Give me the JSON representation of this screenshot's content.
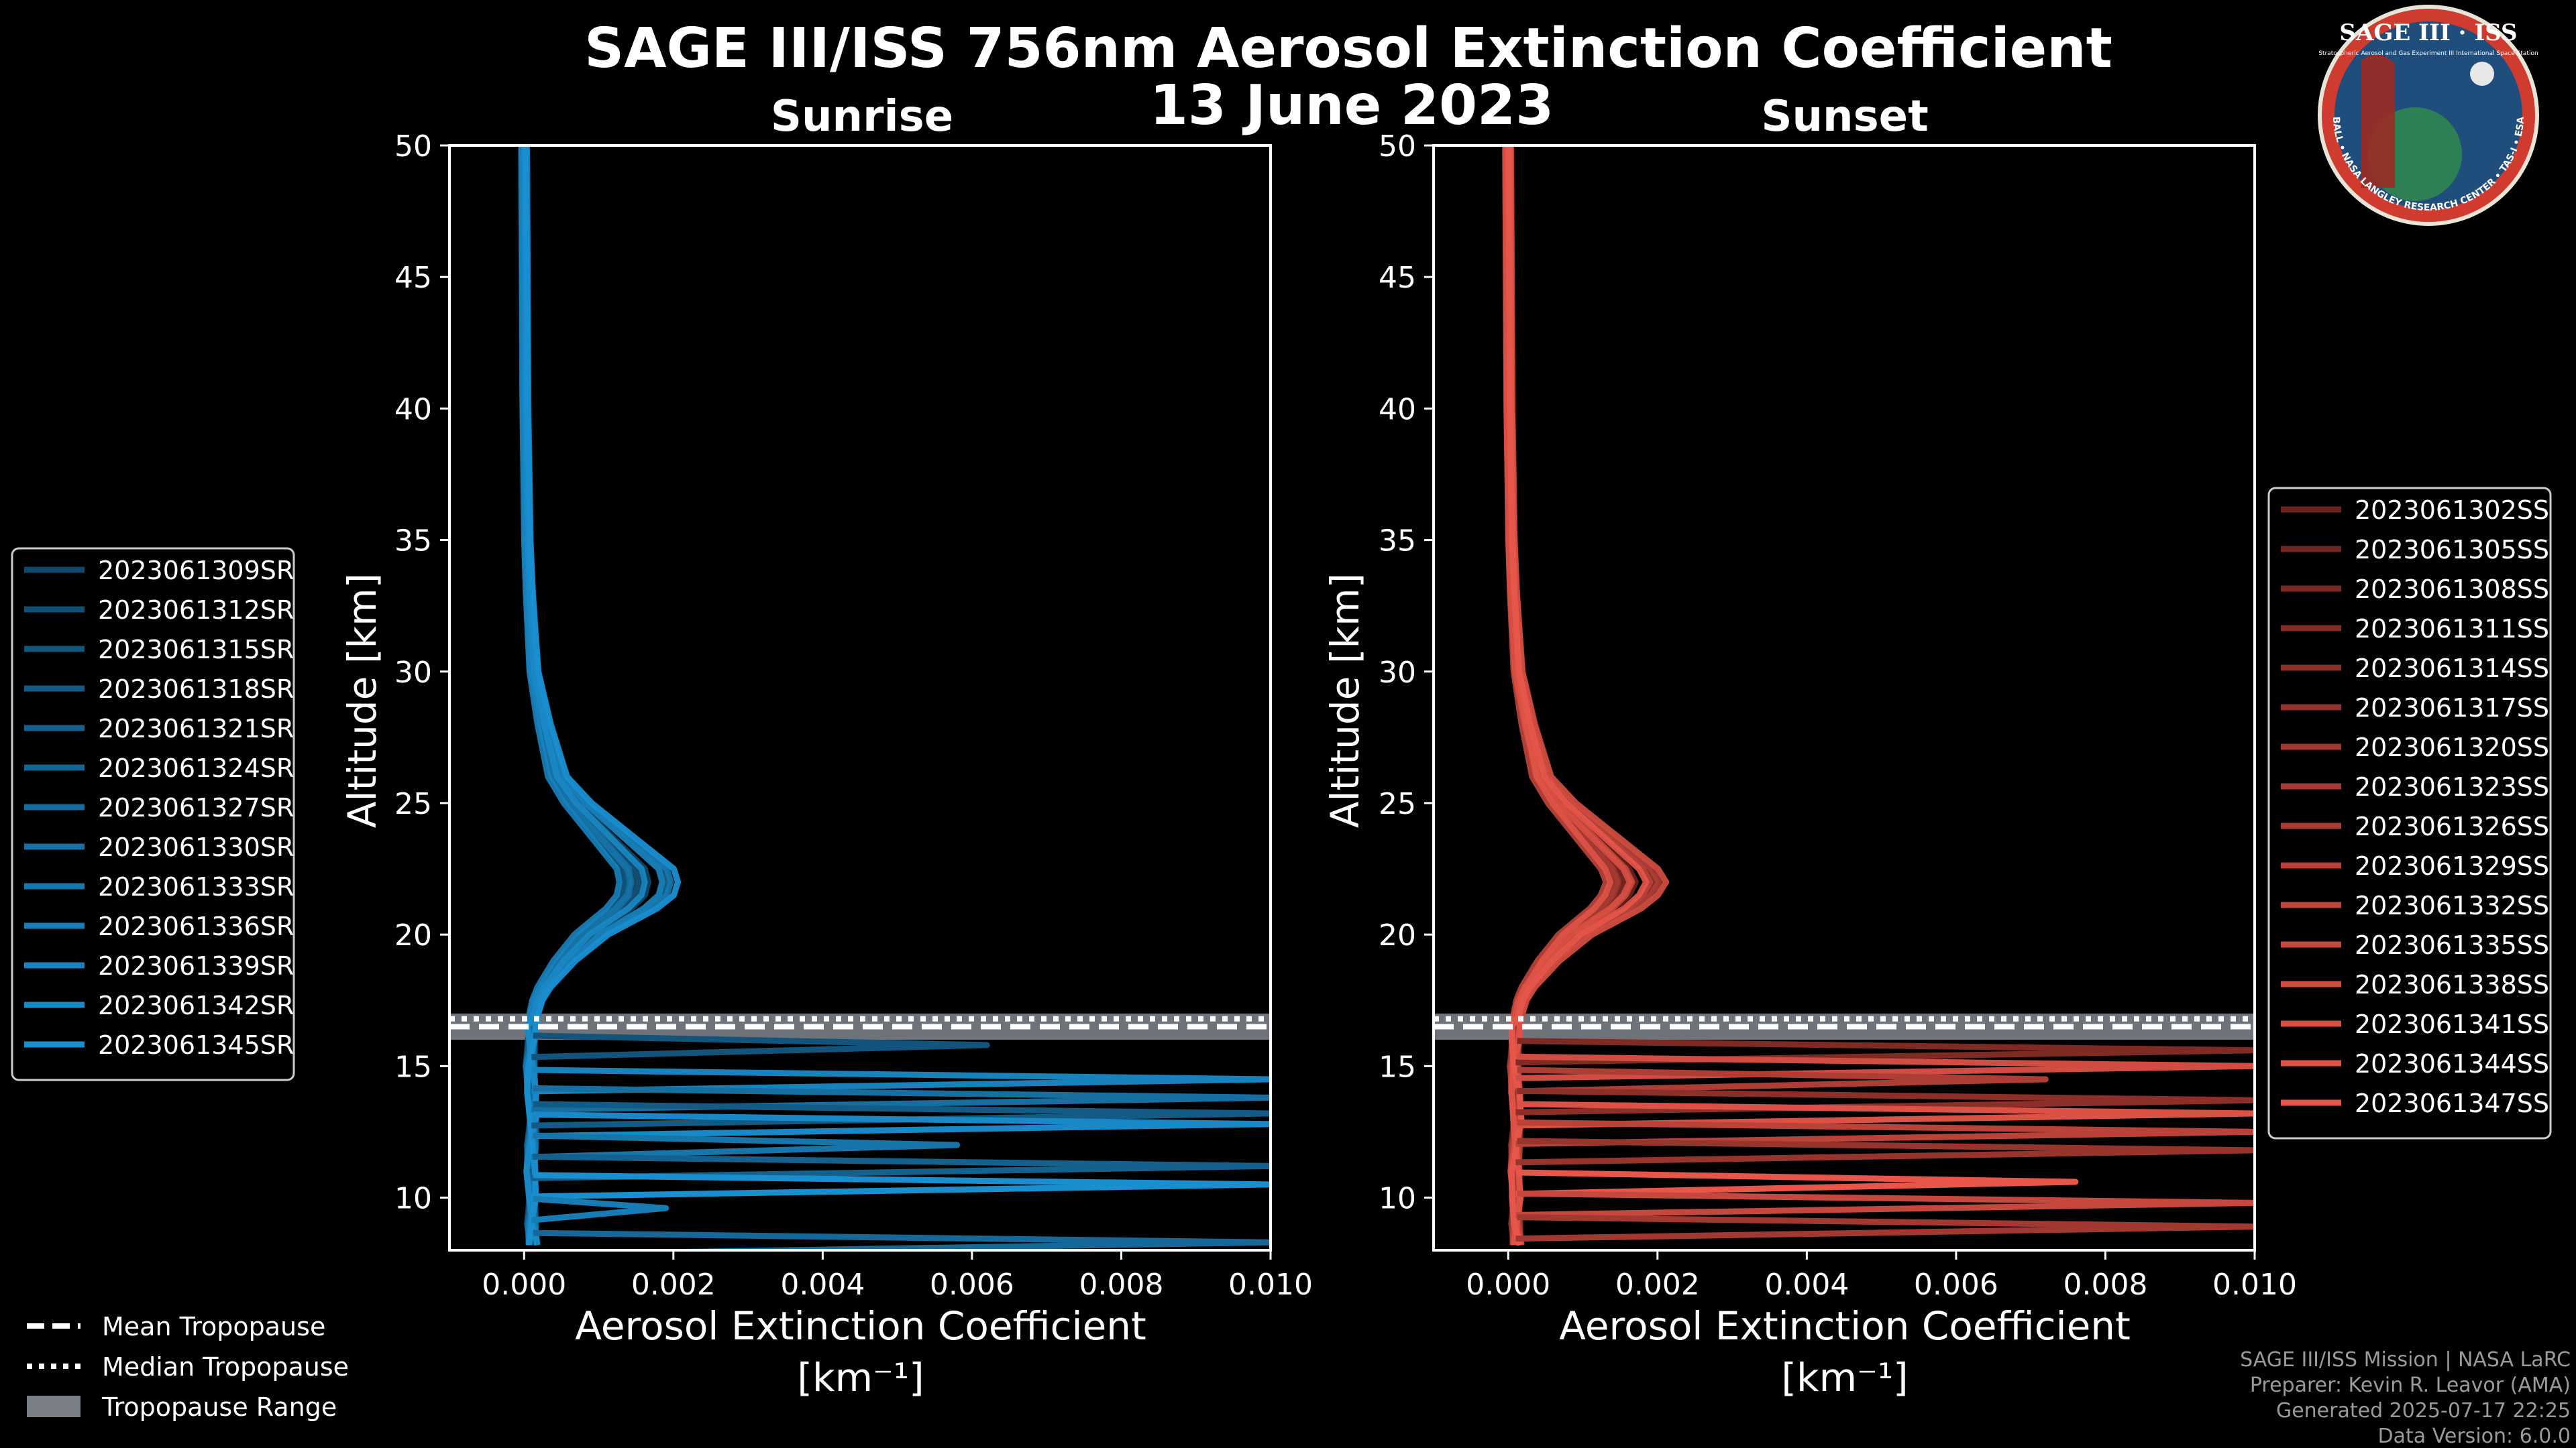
{
  "figure": {
    "title_line1": "SAGE III/ISS 756nm Aerosol Extinction Coefficient",
    "title_line2": "13 June 2023"
  },
  "logo": {
    "title": "SAGE III · ISS",
    "subtitle": "Stratospheric Aerosol and Gas Experiment III International Space Station",
    "ring_text": "BALL • NASA LANGLEY RESEARCH CENTER • TAS-I • ESA"
  },
  "credits": {
    "line1": "SAGE III/ISS Mission | NASA LaRC",
    "line2": "Preparer: Kevin R. Leavor (AMA)",
    "line3": "Generated 2025-07-17 22:25",
    "line4": "Data Version: 6.0.0"
  },
  "tropopause_legend": {
    "mean": "Mean Tropopause",
    "median": "Median Tropopause",
    "range": "Tropopause Range"
  },
  "colors": {
    "sunrise": "#1a8fd0",
    "sunset": "#e8564a",
    "range_fill": "#7a7e86",
    "frame": "#ffffff"
  },
  "chart_data": [
    {
      "type": "line",
      "title": "Sunrise",
      "xlabel": "Aerosol Extinction Coefficient",
      "xunit": "[km⁻¹]",
      "ylabel": "Altitude [km]",
      "xlim": [
        -0.001,
        0.01
      ],
      "ylim": [
        8,
        50
      ],
      "xticks": [
        "0.000",
        "0.002",
        "0.004",
        "0.006",
        "0.008",
        "0.010"
      ],
      "yticks": [
        "10",
        "15",
        "20",
        "25",
        "30",
        "35",
        "40",
        "45",
        "50"
      ],
      "tropopause": {
        "mean": 16.5,
        "median": 16.8,
        "range": [
          16.0,
          17.0
        ]
      },
      "profile_shape": {
        "altitude": [
          50,
          40,
          35,
          33,
          30,
          28,
          26,
          25,
          24,
          23,
          22.5,
          22,
          21.5,
          21,
          20.5,
          20,
          19.5,
          19,
          18.5,
          18,
          17.5,
          17,
          16.5,
          16,
          15,
          14,
          13,
          12,
          11,
          10,
          9,
          8.2
        ],
        "extinction": [
          0.0,
          2e-05,
          5e-05,
          8e-05,
          0.00015,
          0.0003,
          0.0005,
          0.0008,
          0.0012,
          0.0016,
          0.0018,
          0.00185,
          0.0018,
          0.0016,
          0.0013,
          0.001,
          0.0008,
          0.0006,
          0.00045,
          0.0003,
          0.0002,
          0.00015,
          0.0001,
          0.0001,
          8e-05,
          0.0001,
          0.00012,
          0.0001,
          9e-05,
          0.00011,
          0.0001,
          0.00012
        ]
      },
      "series": [
        {
          "name": "2023061309SR"
        },
        {
          "name": "2023061312SR"
        },
        {
          "name": "2023061315SR"
        },
        {
          "name": "2023061318SR"
        },
        {
          "name": "2023061321SR"
        },
        {
          "name": "2023061324SR"
        },
        {
          "name": "2023061327SR"
        },
        {
          "name": "2023061330SR"
        },
        {
          "name": "2023061333SR"
        },
        {
          "name": "2023061336SR"
        },
        {
          "name": "2023061339SR"
        },
        {
          "name": "2023061342SR"
        },
        {
          "name": "2023061345SR"
        }
      ],
      "spikes": [
        {
          "altitude": 15.8,
          "extinction": 0.0062
        },
        {
          "altitude": 14.5,
          "extinction": 0.01
        },
        {
          "altitude": 13.8,
          "extinction": 0.01
        },
        {
          "altitude": 13.2,
          "extinction": 0.01
        },
        {
          "altitude": 12.8,
          "extinction": 0.01
        },
        {
          "altitude": 12.0,
          "extinction": 0.0058
        },
        {
          "altitude": 11.2,
          "extinction": 0.01
        },
        {
          "altitude": 10.5,
          "extinction": 0.01
        },
        {
          "altitude": 9.6,
          "extinction": 0.0019
        },
        {
          "altitude": 8.3,
          "extinction": 0.01
        }
      ]
    },
    {
      "type": "line",
      "title": "Sunset",
      "xlabel": "Aerosol Extinction Coefficient",
      "xunit": "[km⁻¹]",
      "ylabel": "Altitude [km]",
      "xlim": [
        -0.001,
        0.01
      ],
      "ylim": [
        8,
        50
      ],
      "xticks": [
        "0.000",
        "0.002",
        "0.004",
        "0.006",
        "0.008",
        "0.010"
      ],
      "yticks": [
        "10",
        "15",
        "20",
        "25",
        "30",
        "35",
        "40",
        "45",
        "50"
      ],
      "tropopause": {
        "mean": 16.5,
        "median": 16.8,
        "range": [
          16.0,
          17.0
        ]
      },
      "profile_shape": {
        "altitude": [
          50,
          40,
          35,
          33,
          30,
          28,
          26,
          25,
          24,
          23,
          22.5,
          22,
          21.5,
          21,
          20.5,
          20,
          19.5,
          19,
          18.5,
          18,
          17.5,
          17,
          16.5,
          16,
          15,
          14,
          13,
          12,
          11,
          10,
          9,
          8.2
        ],
        "extinction": [
          0.0,
          2e-05,
          5e-05,
          8e-05,
          0.00015,
          0.0003,
          0.0005,
          0.0008,
          0.0012,
          0.0016,
          0.0018,
          0.0019,
          0.0018,
          0.0016,
          0.0013,
          0.001,
          0.0008,
          0.0006,
          0.00045,
          0.0003,
          0.0002,
          0.00015,
          0.0001,
          0.0001,
          8e-05,
          0.0001,
          0.00012,
          0.0001,
          9e-05,
          0.00011,
          0.0001,
          0.00012
        ]
      },
      "series": [
        {
          "name": "2023061302SS"
        },
        {
          "name": "2023061305SS"
        },
        {
          "name": "2023061308SS"
        },
        {
          "name": "2023061311SS"
        },
        {
          "name": "2023061314SS"
        },
        {
          "name": "2023061317SS"
        },
        {
          "name": "2023061320SS"
        },
        {
          "name": "2023061323SS"
        },
        {
          "name": "2023061326SS"
        },
        {
          "name": "2023061329SS"
        },
        {
          "name": "2023061332SS"
        },
        {
          "name": "2023061335SS"
        },
        {
          "name": "2023061338SS"
        },
        {
          "name": "2023061341SS"
        },
        {
          "name": "2023061344SS"
        },
        {
          "name": "2023061347SS"
        }
      ],
      "spikes": [
        {
          "altitude": 15.6,
          "extinction": 0.01
        },
        {
          "altitude": 15.0,
          "extinction": 0.01
        },
        {
          "altitude": 14.5,
          "extinction": 0.0072
        },
        {
          "altitude": 13.7,
          "extinction": 0.01
        },
        {
          "altitude": 13.2,
          "extinction": 0.01
        },
        {
          "altitude": 12.5,
          "extinction": 0.01
        },
        {
          "altitude": 11.8,
          "extinction": 0.01
        },
        {
          "altitude": 10.6,
          "extinction": 0.0076
        },
        {
          "altitude": 9.8,
          "extinction": 0.01
        },
        {
          "altitude": 8.9,
          "extinction": 0.01
        }
      ]
    }
  ]
}
